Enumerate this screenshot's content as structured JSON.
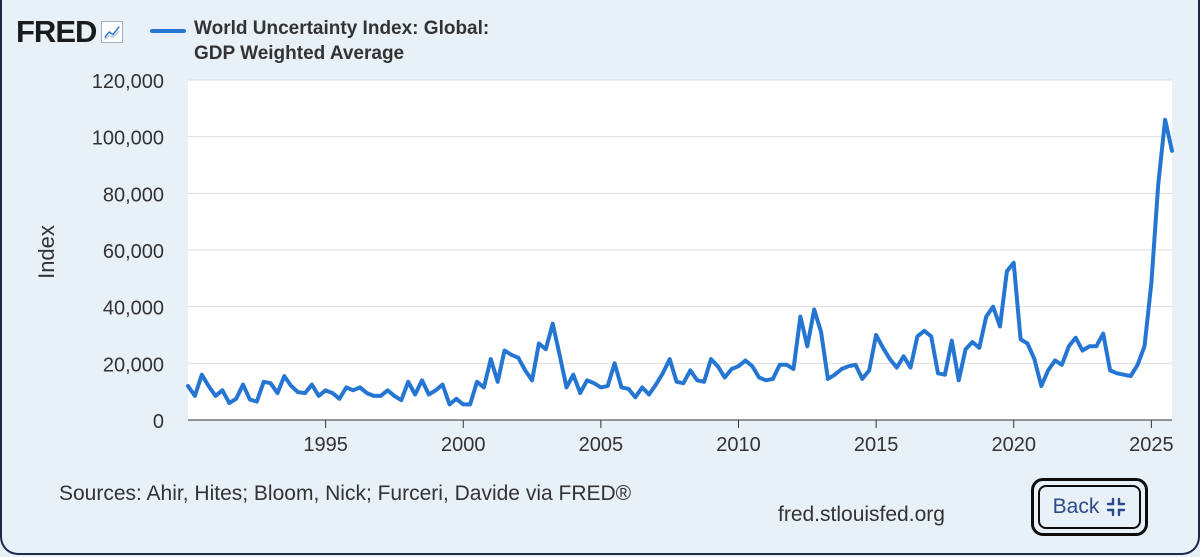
{
  "header": {
    "logo_text": "FRED",
    "logo_icon": "trend-line-icon",
    "title_line1": "World Uncertainty Index: Global:",
    "title_line2": "GDP Weighted Average"
  },
  "footer": {
    "sources": "Sources: Ahir, Hites; Bloom, Nick; Furceri, Davide via FRED®",
    "site": "fred.stlouisfed.org",
    "back_label": "Back",
    "back_icon": "collapse-icon"
  },
  "chart_data": {
    "type": "line",
    "title": "World Uncertainty Index: Global: GDP Weighted Average",
    "ylabel": "Index",
    "xlabel": "",
    "ylim": [
      0,
      120000
    ],
    "xlim": [
      1990.0,
      2025.75
    ],
    "y_ticks": [
      0,
      20000,
      40000,
      60000,
      80000,
      100000,
      120000
    ],
    "y_tick_labels": [
      "0",
      "20,000",
      "40,000",
      "60,000",
      "80,000",
      "100,000",
      "120,000"
    ],
    "x_ticks": [
      1995,
      2000,
      2005,
      2010,
      2015,
      2020,
      2025
    ],
    "x_tick_labels": [
      "1995",
      "2000",
      "2005",
      "2010",
      "2015",
      "2020",
      "2025"
    ],
    "grid": true,
    "color": "#2576d3",
    "series": [
      {
        "frequency": "quarterly",
        "start": "1990-Q1",
        "values": [
          12000,
          8500,
          16000,
          12000,
          8500,
          10500,
          6000,
          7500,
          12500,
          7200,
          6500,
          13500,
          13000,
          9500,
          15500,
          12000,
          9800,
          9500,
          12500,
          8500,
          10500,
          9500,
          7500,
          11500,
          10500,
          11500,
          9500,
          8500,
          8500,
          10500,
          8500,
          7000,
          13500,
          9000,
          14000,
          9000,
          10500,
          12500,
          5500,
          7500,
          5500,
          5500,
          13500,
          11500,
          21500,
          13500,
          24500,
          23000,
          22000,
          17500,
          14000,
          27000,
          25000,
          34000,
          23000,
          11500,
          16000,
          9500,
          14000,
          13000,
          11500,
          12000,
          20000,
          11500,
          11000,
          8000,
          11500,
          9000,
          12500,
          16500,
          21500,
          13500,
          13000,
          17500,
          14000,
          13500,
          21500,
          19000,
          15000,
          18000,
          19000,
          21000,
          19000,
          15000,
          14000,
          14500,
          19500,
          19500,
          18000,
          36500,
          26000,
          39000,
          31000,
          14500,
          16000,
          18000,
          19000,
          19500,
          14500,
          17500,
          30000,
          25500,
          21500,
          18500,
          22500,
          18500,
          29500,
          31500,
          29500,
          16500,
          16000,
          28000,
          14000,
          25000,
          27500,
          25500,
          36500,
          40000,
          33000,
          52500,
          55500,
          28500,
          27000,
          21500,
          12000,
          17500,
          21000,
          19500,
          26000,
          29000,
          24500,
          26000,
          26000,
          30500,
          17500,
          16500,
          16000,
          15500,
          19500,
          26000,
          48500,
          83000,
          106000,
          95000
        ]
      }
    ]
  }
}
